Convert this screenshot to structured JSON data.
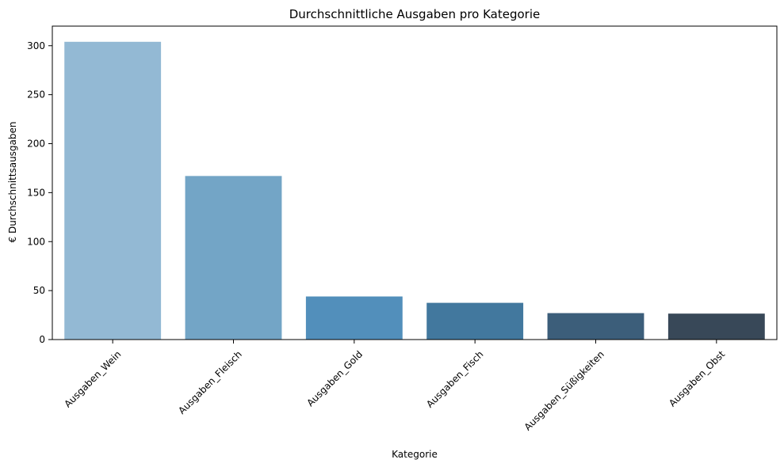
{
  "chart_data": {
    "type": "bar",
    "title": "Durchschnittliche Ausgaben pro Kategorie",
    "xlabel": "Kategorie",
    "ylabel": "€ Durchschnittsausgaben",
    "categories": [
      "Ausgaben_Wein",
      "Ausgaben_Fleisch",
      "Ausgaben_Gold",
      "Ausgaben_Fisch",
      "Ausgaben_Süßigkeiten",
      "Ausgaben_Obst"
    ],
    "values": [
      304,
      167,
      44,
      37.5,
      27,
      26.5
    ],
    "colors": [
      "#93b9d4",
      "#73a5c6",
      "#528fbb",
      "#42789e",
      "#3c5e7a",
      "#384858"
    ],
    "ylim": [
      0,
      320
    ],
    "yticks": [
      0,
      50,
      100,
      150,
      200,
      250,
      300
    ],
    "grid": false,
    "legend": "none"
  }
}
